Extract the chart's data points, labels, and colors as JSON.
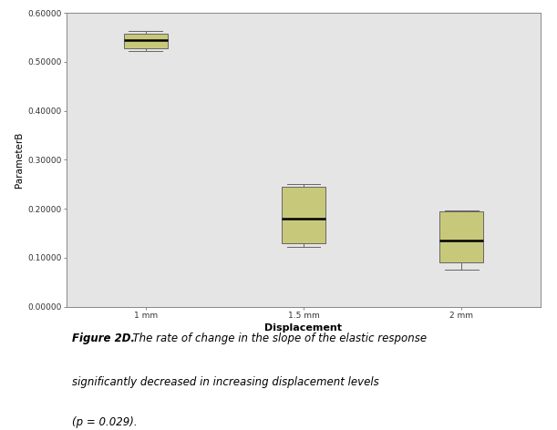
{
  "categories": [
    "1 mm",
    "1.5 mm",
    "2 mm"
  ],
  "box_data": [
    {
      "q1": 0.527,
      "median": 0.545,
      "q3": 0.558,
      "whisker_low": 0.522,
      "whisker_high": 0.563
    },
    {
      "q1": 0.13,
      "median": 0.18,
      "q3": 0.245,
      "whisker_low": 0.122,
      "whisker_high": 0.25
    },
    {
      "q1": 0.09,
      "median": 0.135,
      "q3": 0.195,
      "whisker_low": 0.075,
      "whisker_high": 0.197
    }
  ],
  "box_color": "#C8C87A",
  "box_edge_color": "#666666",
  "median_color": "#000000",
  "whisker_color": "#666666",
  "ylabel": "ParameterB",
  "xlabel": "Displacement",
  "ylim": [
    0.0,
    0.6
  ],
  "yticks": [
    0.0,
    0.1,
    0.2,
    0.3,
    0.4,
    0.5,
    0.6
  ],
  "ytick_labels": [
    "0.00000",
    "0.10000",
    "0.20000",
    "0.30000",
    "0.40000",
    "0.50000",
    "0.60000"
  ],
  "bg_color": "#E5E5E5",
  "caption_bold": "Figure 2D.",
  "caption_italic1": "  The rate of change in the slope of the elastic response",
  "caption_italic2": "significantly decreased in increasing displacement levels",
  "caption_italic3": "(p = 0.029).",
  "box_width": 0.28,
  "positions": [
    1,
    2,
    3
  ],
  "tick_fontsize": 6.5,
  "axis_label_fontsize": 8.0,
  "caption_fontsize": 8.5
}
